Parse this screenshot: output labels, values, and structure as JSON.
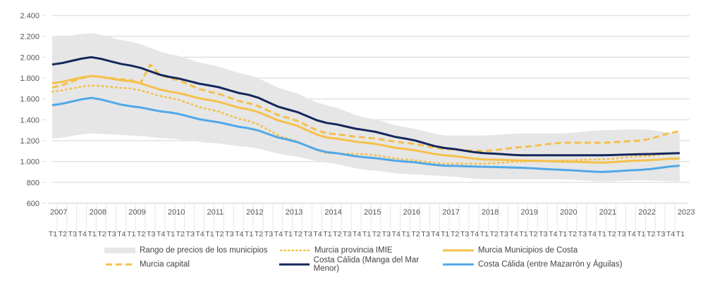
{
  "chart_data": {
    "type": "line",
    "title": "",
    "xlabel": "",
    "ylabel": "",
    "ylim": [
      600,
      2400
    ],
    "yticks": [
      600,
      800,
      1000,
      1200,
      1400,
      1600,
      1800,
      2000,
      2200,
      2400
    ],
    "ytick_labels": [
      "600",
      "800",
      "1.000",
      "1.200",
      "1.400",
      "1.600",
      "1.800",
      "2.000",
      "2.200",
      "2.400"
    ],
    "grid": true,
    "legend_position": "bottom",
    "years": [
      "2007",
      "2008",
      "2009",
      "2010",
      "2011",
      "2012",
      "2013",
      "2014",
      "2015",
      "2016",
      "2017",
      "2018",
      "2019",
      "2020",
      "2021",
      "2022",
      "2023"
    ],
    "quarters_per_year": [
      "T1",
      "T2",
      "T3",
      "T4"
    ],
    "last_period": "2023 T1",
    "x_annual_T1": [
      "2007 T1",
      "2008 T1",
      "2009 T1",
      "2010 T1",
      "2011 T1",
      "2012 T1",
      "2013 T1",
      "2014 T1",
      "2015 T1",
      "2016 T1",
      "2017 T1",
      "2018 T1",
      "2019 T1",
      "2020 T1",
      "2021 T1",
      "2022 T1",
      "2023 T1"
    ],
    "range": {
      "name": "Rango de precios de los municipios",
      "color": "#e6e6e6",
      "upper": [
        2190,
        2230,
        2150,
        2030,
        1930,
        1830,
        1680,
        1540,
        1420,
        1330,
        1250,
        1250,
        1270,
        1270,
        1300,
        1310,
        1270
      ],
      "lower": [
        1220,
        1270,
        1250,
        1220,
        1180,
        1140,
        1060,
        990,
        920,
        880,
        860,
        830,
        830,
        830,
        810,
        820,
        810
      ]
    },
    "series": [
      {
        "name": "Murcia provincia IMIE",
        "style": "dotted",
        "color": "#f5c04a",
        "values": [
          1670,
          1730,
          1700,
          1610,
          1500,
          1390,
          1220,
          1080,
          1070,
          1020,
          980,
          980,
          1000,
          1010,
          1020,
          1050,
          1080
        ]
      },
      {
        "name": "Murcia Municipios de Costa",
        "style": "solid",
        "color": "#f5c04a",
        "values": [
          1750,
          1820,
          1770,
          1670,
          1590,
          1500,
          1370,
          1230,
          1180,
          1120,
          1060,
          1020,
          1010,
          1000,
          990,
          1010,
          1030
        ]
      },
      {
        "name": "Murcia capital",
        "style": "dashed",
        "color": "#f5c04a",
        "values": [
          1710,
          1820,
          1780,
          1800,
          1670,
          1560,
          1420,
          1270,
          1230,
          1180,
          1120,
          1100,
          1140,
          1180,
          1180,
          1200,
          1290
        ]
      },
      {
        "name": "Costa Cálida (Manga del Mar Menor)",
        "style": "solid",
        "color": "#14265b",
        "values": [
          1930,
          2000,
          1920,
          1810,
          1730,
          1640,
          1500,
          1370,
          1300,
          1220,
          1130,
          1080,
          1060,
          1060,
          1060,
          1070,
          1080
        ]
      },
      {
        "name": "Costa Cálida (entre Mazarrón y Águilas)",
        "style": "solid",
        "color": "#4fa8e8",
        "values": [
          1540,
          1610,
          1530,
          1470,
          1390,
          1320,
          1210,
          1090,
          1040,
          1000,
          960,
          950,
          940,
          920,
          900,
          920,
          960
        ]
      }
    ],
    "capital_spike": {
      "period": "2009 T3",
      "value": 1930,
      "before": 1750
    }
  }
}
